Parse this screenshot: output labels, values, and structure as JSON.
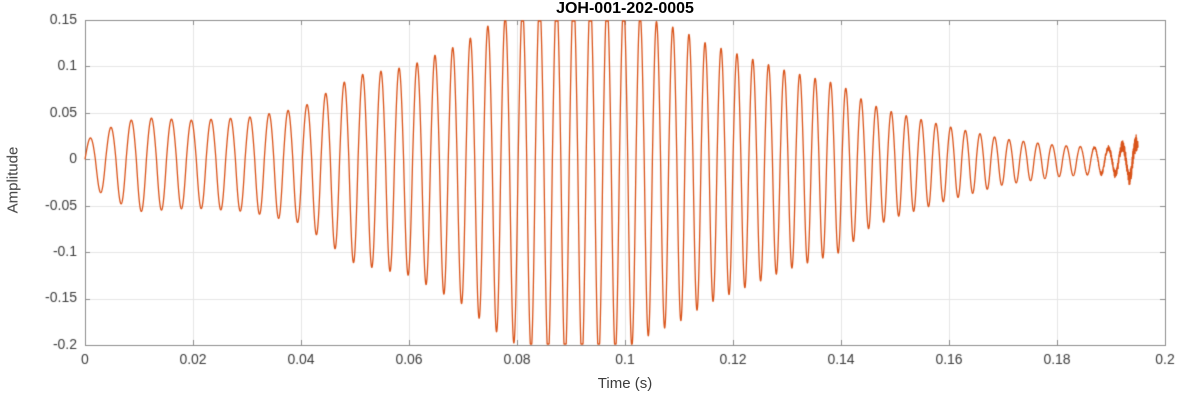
{
  "figure": {
    "background": "#FFFFFF"
  },
  "chart_data": {
    "type": "line",
    "title": "JOH-001-202-0005",
    "xlabel": "Time (s)",
    "ylabel": "Amplitude",
    "xlim": [
      0,
      0.2
    ],
    "ylim": [
      -0.2,
      0.15
    ],
    "xtick_values": [
      0,
      0.02,
      0.04,
      0.06,
      0.08,
      0.1,
      0.12,
      0.14,
      0.16,
      0.18,
      0.2
    ],
    "xtick_labels": [
      "0",
      "0.02",
      "0.04",
      "0.06",
      "0.08",
      "0.1",
      "0.12",
      "0.14",
      "0.16",
      "0.18",
      "0.2"
    ],
    "ytick_values": [
      -0.2,
      -0.15,
      -0.1,
      -0.05,
      0,
      0.05,
      0.1,
      0.15
    ],
    "ytick_labels": [
      "-0.2",
      "-0.15",
      "-0.1",
      "-0.05",
      "0",
      "0.05",
      "0.1",
      "0.15"
    ],
    "grid": true,
    "legend": null,
    "line_color": "#D95319",
    "grid_color": "#E6E6E6",
    "axis_color": "#8C8C8C",
    "tick_text_color": "#3D3D3D",
    "title_color": "#000000",
    "signal": {
      "description": "amplitude-modulated oscillation (~260-390 Hz chirp), envelope rises from ~0.03, peaks near t=0.09 s where the trace is clipped by the axes limits at +0.15 and -0.2, then decays to a small noisy tail ending near t=0.195 s",
      "duration_s": 0.195,
      "carrier_freq_hz_start": 260,
      "carrier_freq_hz_end": 390,
      "negative_gain": 1.25,
      "envelope_t": [
        0,
        0.005,
        0.01,
        0.02,
        0.03,
        0.04,
        0.05,
        0.06,
        0.07,
        0.075,
        0.08,
        0.085,
        0.09,
        0.095,
        0.1,
        0.105,
        0.11,
        0.115,
        0.12,
        0.13,
        0.14,
        0.145,
        0.15,
        0.16,
        0.17,
        0.18,
        0.19,
        0.195
      ],
      "envelope_a": [
        0.02,
        0.035,
        0.045,
        0.042,
        0.045,
        0.055,
        0.09,
        0.1,
        0.125,
        0.145,
        0.16,
        0.17,
        0.175,
        0.17,
        0.165,
        0.15,
        0.14,
        0.125,
        0.115,
        0.095,
        0.08,
        0.06,
        0.05,
        0.035,
        0.022,
        0.015,
        0.012,
        0.018
      ],
      "noise_amp_end": 0.01,
      "noise_start_t": 0.183
    }
  }
}
